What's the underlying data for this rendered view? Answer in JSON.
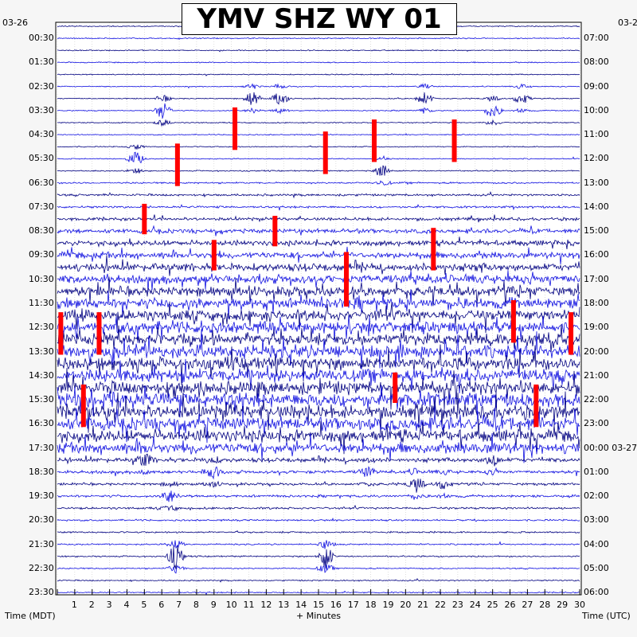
{
  "chart_data": {
    "type": "helicorder",
    "title": "YMV SHZ WY 01",
    "left_date": "03-26",
    "right_date_top": "03-2",
    "right_date_mid": "03-27",
    "left_axis_label": "Time (MDT)",
    "right_axis_label": "Time (UTC)",
    "x_axis_label": "+ Minutes",
    "x_ticks": [
      "1",
      "2",
      "3",
      "4",
      "5",
      "6",
      "7",
      "8",
      "9",
      "10",
      "11",
      "12",
      "13",
      "14",
      "15",
      "16",
      "17",
      "18",
      "19",
      "20",
      "21",
      "22",
      "23",
      "24",
      "25",
      "26",
      "27",
      "28",
      "29",
      "30"
    ],
    "x_range_minutes": [
      0,
      30
    ],
    "trace_count": 48,
    "left_labels": [
      "00:30",
      "01:30",
      "02:30",
      "03:30",
      "04:30",
      "05:30",
      "06:30",
      "07:30",
      "08:30",
      "09:30",
      "10:30",
      "11:30",
      "12:30",
      "13:30",
      "14:30",
      "15:30",
      "16:30",
      "17:30",
      "18:30",
      "19:30",
      "20:30",
      "21:30",
      "22:30",
      "23:30"
    ],
    "right_labels": [
      "07:00",
      "08:00",
      "09:00",
      "10:00",
      "11:00",
      "12:00",
      "13:00",
      "14:00",
      "15:00",
      "16:00",
      "17:00",
      "18:00",
      "19:00",
      "20:00",
      "21:00",
      "22:00",
      "23:00",
      "00:00",
      "01:00",
      "02:00",
      "03:00",
      "04:00",
      "05:00",
      "06:00"
    ],
    "trace_colors": [
      "#000080",
      "#1010e0"
    ],
    "clip_color": "#ff0000",
    "activity_per_trace": [
      0.5,
      0.5,
      0.5,
      0.5,
      0.5,
      0.5,
      0.5,
      0.5,
      0.5,
      0.5,
      0.5,
      0.5,
      0.6,
      0.8,
      1,
      1,
      1.5,
      2,
      2.5,
      3,
      3.5,
      4,
      4.5,
      5,
      5,
      5.5,
      5.5,
      6,
      6,
      6,
      6,
      6.5,
      6.5,
      6,
      5.5,
      5,
      2,
      1.5,
      1.2,
      1.2,
      1,
      0.8,
      0.8,
      0.7,
      0.7,
      0.6,
      0.6,
      0.6
    ],
    "clipped_events": [
      {
        "minute": 10.2,
        "trace_from": 7,
        "trace_to": 10
      },
      {
        "minute": 6.9,
        "trace_from": 10,
        "trace_to": 13
      },
      {
        "minute": 15.4,
        "trace_from": 9,
        "trace_to": 12
      },
      {
        "minute": 18.2,
        "trace_from": 8,
        "trace_to": 11
      },
      {
        "minute": 22.8,
        "trace_from": 8,
        "trace_to": 11
      },
      {
        "minute": 5.0,
        "trace_from": 15,
        "trace_to": 17
      },
      {
        "minute": 12.5,
        "trace_from": 16,
        "trace_to": 18
      },
      {
        "minute": 21.6,
        "trace_from": 17,
        "trace_to": 20
      },
      {
        "minute": 9.0,
        "trace_from": 18,
        "trace_to": 20
      },
      {
        "minute": 16.6,
        "trace_from": 19,
        "trace_to": 23
      },
      {
        "minute": 0.2,
        "trace_from": 24,
        "trace_to": 27
      },
      {
        "minute": 2.4,
        "trace_from": 24,
        "trace_to": 27
      },
      {
        "minute": 26.2,
        "trace_from": 23,
        "trace_to": 26
      },
      {
        "minute": 29.5,
        "trace_from": 24,
        "trace_to": 27
      },
      {
        "minute": 1.5,
        "trace_from": 30,
        "trace_to": 33
      },
      {
        "minute": 27.5,
        "trace_from": 30,
        "trace_to": 33
      },
      {
        "minute": 19.4,
        "trace_from": 29,
        "trace_to": 31
      }
    ],
    "bursts": [
      {
        "minute": 6.1,
        "trace": 7,
        "amp": 12
      },
      {
        "minute": 11.2,
        "trace": 6,
        "amp": 10
      },
      {
        "minute": 12.8,
        "trace": 6,
        "amp": 9
      },
      {
        "minute": 21.1,
        "trace": 6,
        "amp": 9
      },
      {
        "minute": 25.0,
        "trace": 7,
        "amp": 10
      },
      {
        "minute": 26.7,
        "trace": 6,
        "amp": 8
      },
      {
        "minute": 4.5,
        "trace": 11,
        "amp": 9
      },
      {
        "minute": 18.7,
        "trace": 12,
        "amp": 9
      },
      {
        "minute": 5.0,
        "trace": 36,
        "amp": 8
      },
      {
        "minute": 25.0,
        "trace": 36,
        "amp": 7
      },
      {
        "minute": 8.9,
        "trace": 37,
        "amp": 9
      },
      {
        "minute": 17.8,
        "trace": 37,
        "amp": 6
      },
      {
        "minute": 20.6,
        "trace": 38,
        "amp": 10
      },
      {
        "minute": 6.5,
        "trace": 39,
        "amp": 9
      },
      {
        "minute": 22.2,
        "trace": 38,
        "amp": 6
      },
      {
        "minute": 6.8,
        "trace": 44,
        "amp": 16
      },
      {
        "minute": 15.4,
        "trace": 44,
        "amp": 16
      }
    ]
  }
}
